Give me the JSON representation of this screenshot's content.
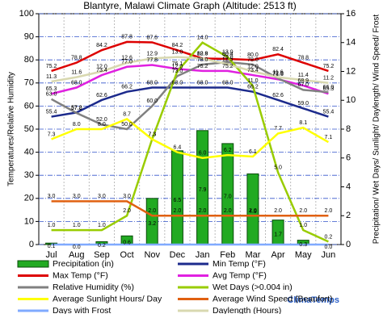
{
  "chart_data": {
    "type": "combo",
    "title": "Blantyre, Malawi Climate Graph (Altitude: 2513 ft)",
    "y_label": "Temperatures/Relative Humidity",
    "y2_label": "Precipitation/ Wet Days/ Sunlight/ Daylength/ Wind Speed/ Frost",
    "brand": "ClimaTemps",
    "categories": [
      "Jul",
      "Aug",
      "Sep",
      "Oct",
      "Nov",
      "Dec",
      "Jan",
      "Feb",
      "Mar",
      "Apr",
      "May",
      "Jun"
    ],
    "ylim": [
      0,
      100
    ],
    "yticks": [
      0,
      10,
      20,
      30,
      40,
      50,
      60,
      70,
      80,
      90,
      100
    ],
    "y2lim": [
      0,
      16
    ],
    "y2ticks": [
      0,
      2,
      4,
      6,
      8,
      10,
      12,
      14,
      16
    ],
    "grid": true,
    "series": [
      {
        "name": "Precipitation (in)",
        "type": "bar",
        "axis": "y2",
        "color": "#22aa22",
        "values": [
          0.1,
          0,
          0.2,
          0.6,
          3.2,
          6.5,
          7.9,
          7.0,
          4.9,
          1.7,
          0.3,
          0
        ],
        "value_labels": [
          "0.1",
          "0.0",
          "0.2",
          "0.6",
          "3.2",
          "6.5",
          "7.9",
          "7.0",
          "4.9",
          "1.7",
          "0.3",
          "0.0"
        ]
      },
      {
        "name": "Min Temp (°F)",
        "type": "line",
        "color": "#1c2a8c",
        "values": [
          55.4,
          57.2,
          62.6,
          66.2,
          68,
          68,
          68,
          68,
          66.2,
          62.6,
          59,
          55.4
        ],
        "value_labels": [
          "55.4",
          "57.2",
          "62.6",
          "66.2",
          "68.0",
          "68.0",
          "68.0",
          "68.0",
          "66.2",
          "62.6",
          "59.0",
          "55.4"
        ]
      },
      {
        "name": "Max Temp (°F)",
        "type": "line",
        "color": "#dd0000",
        "values": [
          75.2,
          78.8,
          84.2,
          87.8,
          87.6,
          84.2,
          80.6,
          80.4,
          80,
          82.4,
          78.8,
          75.2
        ],
        "value_labels": [
          "75.2",
          "78.8",
          "84.2",
          "87.8",
          "87.6",
          "84.2",
          "80.6",
          "80.4",
          "80.0",
          "82.4",
          "78.8",
          "75.2"
        ]
      },
      {
        "name": "Avg Temp (°F)",
        "type": "line",
        "color": "#e020e0",
        "values": [
          65.3,
          68,
          73.4,
          77,
          77.8,
          76.1,
          75.2,
          75.2,
          73.4,
          71.6,
          68.9,
          65.3
        ],
        "value_labels": [
          "65.3",
          "68.0",
          "73.4",
          "77.0",
          "77.8",
          "76.1",
          "75.2",
          "75.2",
          "73.4",
          "71.6",
          "68.9",
          "65.3"
        ]
      },
      {
        "name": "Relative Humidity (%)",
        "type": "line",
        "color": "#808080",
        "values": [
          63,
          57,
          52,
          50,
          60,
          73,
          78,
          79,
          78,
          72,
          67,
          66
        ],
        "value_labels": [
          "63.0",
          "57.0",
          "52.0",
          "50.0",
          "60.0",
          "73.0",
          "78.0",
          "79.0",
          "78.0",
          "72.0",
          "67.0",
          "66.0"
        ]
      },
      {
        "name": "Wet Days (>0.004 in)",
        "type": "line",
        "axis": "y2",
        "color": "#99cc00",
        "values": [
          1,
          1,
          1,
          2,
          7.3,
          12,
          14,
          13,
          11,
          5,
          1,
          0.2
        ],
        "value_labels": [
          "1.0",
          "1.0",
          "1.0",
          "2.0",
          "7.3",
          "12.0",
          "14.0",
          "13.0",
          "11.0",
          "5.0",
          "1.0",
          "0.2"
        ]
      },
      {
        "name": "Average Sunlight Hours/ Day",
        "type": "line",
        "axis": "y2",
        "color": "#ffff00",
        "values": [
          7.3,
          8,
          8,
          8.7,
          7.3,
          6.4,
          6,
          6.2,
          6.1,
          7.7,
          8.1,
          7.1
        ],
        "value_labels": [
          "7.3",
          "8.0",
          "8.0",
          "8.7",
          "7.3",
          "6.4",
          "6.0",
          "6.2",
          "6.1",
          "7.7",
          "8.1",
          "7.1"
        ]
      },
      {
        "name": "Average Wind Speed (Beaufort)",
        "type": "line",
        "axis": "y2",
        "color": "#e06010",
        "values": [
          3,
          3,
          3,
          3,
          2,
          2,
          2,
          2,
          2,
          2,
          2,
          2
        ],
        "value_labels": [
          "3.0",
          "3.0",
          "3.0",
          "3.0",
          "2.0",
          "2.0",
          "2.0",
          "2.0",
          "2.0",
          "2.0",
          "2.0",
          "2.0"
        ]
      },
      {
        "name": "Days with Frost",
        "type": "line",
        "axis": "y2",
        "color": "#80aaff",
        "values": [
          0,
          0,
          0,
          0,
          0,
          0,
          0,
          0,
          0,
          0,
          0,
          0
        ]
      },
      {
        "name": "Daylength (Hours)",
        "type": "line",
        "axis": "y2",
        "color": "#d8d8b0",
        "values": [
          11.3,
          11.6,
          12,
          12.6,
          12.9,
          13,
          12.9,
          12.5,
          12,
          11.6,
          11.4,
          11.2
        ],
        "value_labels": [
          "11.3",
          "11.6",
          "12.0",
          "12.6",
          "12.9",
          "13.0",
          "12.9",
          "12.5",
          "12.0",
          "11.6",
          "11.4",
          "11.2"
        ]
      }
    ]
  }
}
